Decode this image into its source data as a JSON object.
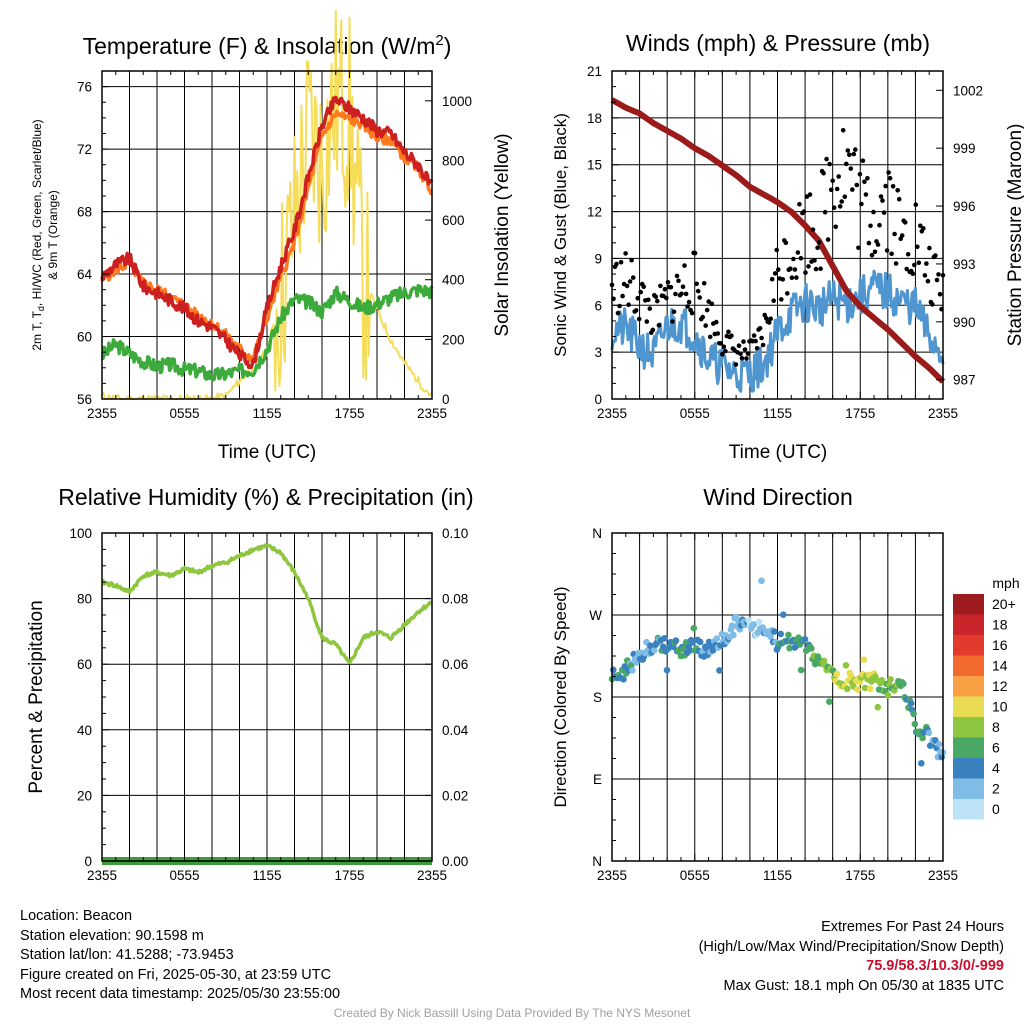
{
  "colors": {
    "temp": "#cc1f1f",
    "dewpoint": "#3cab3c",
    "wind_chill_heat_index": "#f28b22",
    "temp_9m": "#ff7a1f",
    "solar": "#f5dd5a",
    "wind": "#4f95cf",
    "gust": "#000000",
    "pressure": "#9b1b1b",
    "rh": "#8ec63f",
    "precip": "#3c9c3c"
  },
  "time_ticks": [
    "2355",
    "0555",
    "1155",
    "1755",
    "2355"
  ],
  "charts": {
    "temp": {
      "title_main": "Temperature (F) & Insolation (W/m",
      "title_sup": "2",
      "title_end": ")",
      "ylabel_lines": [
        "2m T, T",
        "d",
        ", HI/WC (Red, Green, Scarlet/Blue)",
        "& 9m T (Orange)"
      ],
      "y2label": "Solar Insolation (Yellow)",
      "xlabel": "Time (UTC)",
      "yticks": [
        "56",
        "60",
        "64",
        "68",
        "72",
        "76"
      ],
      "y2ticks": [
        "0",
        "200",
        "400",
        "600",
        "800",
        "1000"
      ]
    },
    "wind": {
      "title": "Winds (mph) & Pressure (mb)",
      "ylabel": "Sonic Wind & Gust (Blue, Black)",
      "y2label": "Station Pressure (Maroon)",
      "xlabel": "Time (UTC)",
      "yticks": [
        "0",
        "3",
        "6",
        "9",
        "12",
        "15",
        "18",
        "21"
      ],
      "y2ticks": [
        "987",
        "990",
        "993",
        "996",
        "999",
        "1002"
      ]
    },
    "rh": {
      "title": "Relative Humidity (%) & Precipitation (in)",
      "ylabel": "Percent & Precipitation",
      "yticks": [
        "0",
        "20",
        "40",
        "60",
        "80",
        "100"
      ],
      "y2ticks": [
        "0.00",
        "0.02",
        "0.04",
        "0.06",
        "0.08",
        "0.10"
      ]
    },
    "dir": {
      "title": "Wind Direction",
      "ylabel": "Direction (Colored By Speed)",
      "yticks": [
        "N",
        "E",
        "S",
        "W",
        "N"
      ],
      "legend_title": "mph",
      "legend_labels": [
        "20+",
        "18",
        "16",
        "14",
        "12",
        "10",
        "8",
        "6",
        "4",
        "2",
        "0"
      ],
      "legend_colors": [
        "#9e1c1f",
        "#c9252b",
        "#e23b2e",
        "#f26a2e",
        "#f9a044",
        "#e8dc52",
        "#8ec63f",
        "#4aa865",
        "#3a82bf",
        "#7fbce6",
        "#bfe3f6"
      ]
    }
  },
  "chart_data": [
    {
      "type": "line",
      "title": "Temperature (F) & Insolation (W/m2)",
      "xlabel": "Time (UTC)",
      "ylabel": "2m T, Td, HI/WC (Red, Green, Scarlet/Blue) & 9m T (Orange)",
      "y2label": "Solar Insolation (Yellow)",
      "x_hours": [
        0,
        1,
        2,
        3,
        4,
        5,
        6,
        7,
        8,
        9,
        10,
        11,
        12,
        13,
        14,
        15,
        16,
        17,
        18,
        19,
        20,
        21,
        22,
        23,
        24
      ],
      "ylim": [
        56,
        77
      ],
      "y2lim": [
        0,
        1100
      ],
      "series": [
        {
          "name": "2m T",
          "axis": "left",
          "values": [
            63.8,
            64.6,
            65.0,
            63.2,
            62.8,
            62.3,
            61.8,
            61.0,
            60.6,
            59.8,
            58.8,
            58.2,
            61.8,
            64.5,
            66.8,
            70.2,
            73.5,
            75.2,
            74.6,
            74.0,
            73.2,
            73.0,
            71.8,
            71.0,
            69.5
          ]
        },
        {
          "name": "9m T",
          "axis": "left",
          "values": [
            63.6,
            64.3,
            64.7,
            63.4,
            63.0,
            62.5,
            62.0,
            61.3,
            60.9,
            60.1,
            59.2,
            58.6,
            61.2,
            63.8,
            66.0,
            69.5,
            72.8,
            74.3,
            73.9,
            73.6,
            72.7,
            72.6,
            71.5,
            70.8,
            69.3
          ]
        },
        {
          "name": "Td",
          "axis": "left",
          "values": [
            58.8,
            59.5,
            58.9,
            58.4,
            58.1,
            58.2,
            57.9,
            57.8,
            57.5,
            57.6,
            57.8,
            57.9,
            59.2,
            61.2,
            62.4,
            62.2,
            61.6,
            62.8,
            62.3,
            61.8,
            62.1,
            62.5,
            62.8,
            63.0,
            62.9
          ]
        },
        {
          "name": "Solar",
          "axis": "right",
          "values": [
            10,
            0,
            0,
            0,
            0,
            0,
            0,
            0,
            0,
            10,
            60,
            110,
            160,
            350,
            600,
            900,
            800,
            1000,
            950,
            400,
            300,
            200,
            120,
            60,
            10
          ]
        }
      ]
    },
    {
      "type": "line",
      "title": "Winds (mph) & Pressure (mb)",
      "xlabel": "Time (UTC)",
      "ylabel": "Sonic Wind & Gust (Blue, Black)",
      "y2label": "Station Pressure (Maroon)",
      "x_hours": [
        0,
        1,
        2,
        3,
        4,
        5,
        6,
        7,
        8,
        9,
        10,
        11,
        12,
        13,
        14,
        15,
        16,
        17,
        18,
        19,
        20,
        21,
        22,
        23,
        24
      ],
      "ylim": [
        0,
        21
      ],
      "y2lim": [
        986.0,
        1003.0
      ],
      "series": [
        {
          "name": "Sonic Wind",
          "axis": "left",
          "values": [
            4.3,
            4.5,
            3.4,
            2.8,
            4.7,
            4.9,
            4.1,
            2.6,
            2.1,
            1.6,
            1.6,
            2.2,
            4.3,
            5.5,
            6.2,
            5.8,
            6.4,
            6.1,
            6.5,
            7.1,
            6.8,
            6.2,
            5.9,
            4.0,
            2.9
          ]
        },
        {
          "name": "Gust",
          "axis": "left",
          "values": [
            7.2,
            7.5,
            6.6,
            5.2,
            6.3,
            7.1,
            7.5,
            5.5,
            3.9,
            3.0,
            2.9,
            4.2,
            8.1,
            9.5,
            11.0,
            10.8,
            14.5,
            15.2,
            12.5,
            11.8,
            13.1,
            10.2,
            10.5,
            8.0,
            6.5
          ]
        },
        {
          "name": "Station Pressure",
          "axis": "right",
          "values": [
            1001.5,
            1001.1,
            1000.8,
            1000.3,
            999.9,
            999.5,
            999.0,
            998.6,
            998.1,
            997.6,
            997.0,
            996.6,
            996.2,
            995.7,
            995.0,
            994.2,
            992.9,
            991.6,
            990.8,
            990.2,
            989.6,
            988.9,
            988.2,
            987.6,
            986.9
          ]
        }
      ]
    },
    {
      "type": "line",
      "title": "Relative Humidity (%) & Precipitation (in)",
      "ylabel": "Percent & Precipitation",
      "x_hours": [
        0,
        1,
        2,
        3,
        4,
        5,
        6,
        7,
        8,
        9,
        10,
        11,
        12,
        13,
        14,
        15,
        16,
        17,
        18,
        19,
        20,
        21,
        22,
        23,
        24
      ],
      "ylim": [
        0,
        100
      ],
      "y2lim": [
        0,
        0.1
      ],
      "series": [
        {
          "name": "Relative Humidity",
          "axis": "left",
          "values": [
            85,
            84,
            82,
            87,
            88,
            87,
            89,
            88,
            90,
            91,
            93,
            95,
            96,
            94,
            88,
            80,
            68,
            66,
            60,
            68,
            70,
            68,
            72,
            76,
            79
          ]
        },
        {
          "name": "Precipitation",
          "axis": "right",
          "values": [
            0,
            0,
            0,
            0,
            0,
            0,
            0,
            0,
            0,
            0,
            0,
            0,
            0,
            0,
            0,
            0,
            0,
            0,
            0,
            0,
            0,
            0,
            0,
            0,
            0
          ]
        }
      ]
    },
    {
      "type": "scatter",
      "title": "Wind Direction",
      "ylabel": "Direction (Colored By Speed)",
      "x_hours": [
        0,
        1,
        2,
        3,
        4,
        5,
        6,
        7,
        8,
        9,
        10,
        11,
        12,
        13,
        14,
        15,
        16,
        17,
        18,
        19,
        20,
        21,
        22,
        23,
        24
      ],
      "direction_deg": [
        200,
        210,
        225,
        238,
        235,
        232,
        236,
        232,
        244,
        260,
        258,
        252,
        240,
        242,
        238,
        218,
        203,
        198,
        196,
        198,
        190,
        196,
        150,
        135,
        115
      ],
      "speed_mph": [
        4,
        4,
        3,
        3,
        5,
        5,
        4,
        3,
        2,
        2,
        2,
        2,
        4,
        5,
        6,
        6,
        8,
        9,
        10,
        8,
        7,
        6,
        5,
        4,
        3
      ]
    }
  ],
  "info": {
    "location": "Location: Beacon",
    "elevation": "Station elevation: 90.1598 m",
    "latlon": "Station lat/lon: 41.5288; -73.9453",
    "created": "Figure created on Fri, 2025-05-30, at 23:59 UTC",
    "recent": "Most recent data timestamp: 2025/05/30 23:55:00",
    "extremes_title": "Extremes For Past 24 Hours",
    "extremes_fields": "(High/Low/Max Wind/Precipitation/Snow Depth)",
    "extremes_values": "75.9/58.3/10.3/0/-999",
    "max_gust": "Max Gust: 18.1 mph On 05/30 at 1835 UTC",
    "credit": "Created By Nick Bassill Using Data Provided By The NYS Mesonet"
  }
}
